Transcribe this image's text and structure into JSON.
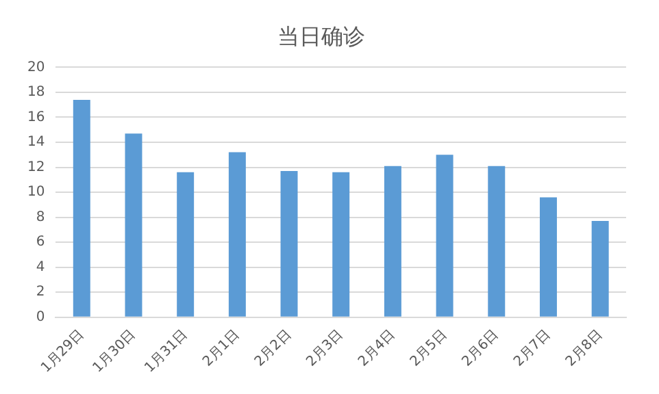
{
  "chart_data": {
    "type": "bar",
    "title": "当日确诊",
    "categories": [
      "1月29日",
      "1月30日",
      "1月31日",
      "2月1日",
      "2月2日",
      "2月3日",
      "2月4日",
      "2月5日",
      "2月6日",
      "2月7日",
      "2月8日"
    ],
    "values": [
      17.4,
      14.7,
      11.6,
      13.2,
      11.7,
      11.6,
      12.1,
      13.0,
      12.1,
      9.6,
      7.7
    ],
    "color": "#5b9bd5",
    "ylim": [
      0,
      20
    ],
    "yticks": [
      0,
      2,
      4,
      6,
      8,
      10,
      12,
      14,
      16,
      18,
      20
    ],
    "grid": "y"
  }
}
